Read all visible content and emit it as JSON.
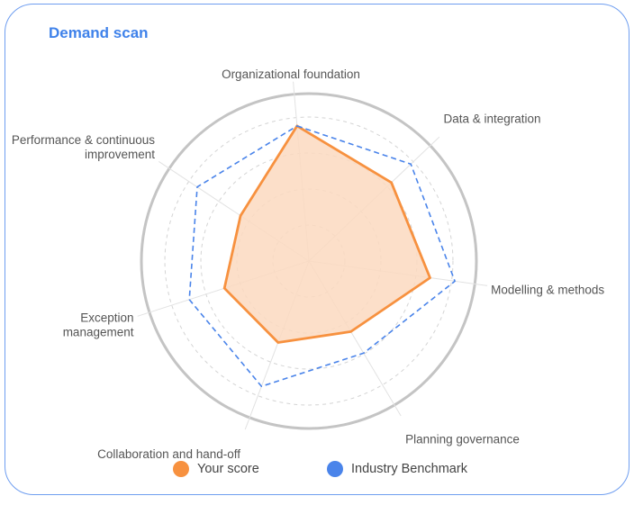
{
  "title": "Demand scan",
  "chart_data": {
    "type": "radar",
    "axes": [
      "Organizational foundation",
      "Data & integration",
      "Modelling & methods",
      "Planning governance",
      "Collaboration and hand-off",
      "Exception management",
      "Performance & continuous improvement"
    ],
    "axis_label_lines": [
      [
        "Organizational foundation"
      ],
      [
        "Data & integration"
      ],
      [
        "Modelling & methods"
      ],
      [
        "Planning governance"
      ],
      [
        "Collaboration and hand-off"
      ],
      [
        "Exception",
        "management"
      ],
      [
        "Performance & continuous",
        "improvement"
      ]
    ],
    "range": [
      0,
      1
    ],
    "series": [
      {
        "name": "Your score",
        "values": [
          0.81,
          0.68,
          0.73,
          0.49,
          0.52,
          0.53,
          0.49
        ],
        "color": "#f7913f",
        "fill": "#fbd9bf",
        "style": "solid"
      },
      {
        "name": "Industry Benchmark",
        "values": [
          0.81,
          0.84,
          0.88,
          0.64,
          0.8,
          0.75,
          0.8
        ],
        "color": "#4a84ea",
        "style": "dashed"
      }
    ],
    "rings": 4
  },
  "legend": [
    {
      "label": "Your score",
      "color": "#f7913f"
    },
    {
      "label": "Industry Benchmark",
      "color": "#4a84ea"
    }
  ]
}
